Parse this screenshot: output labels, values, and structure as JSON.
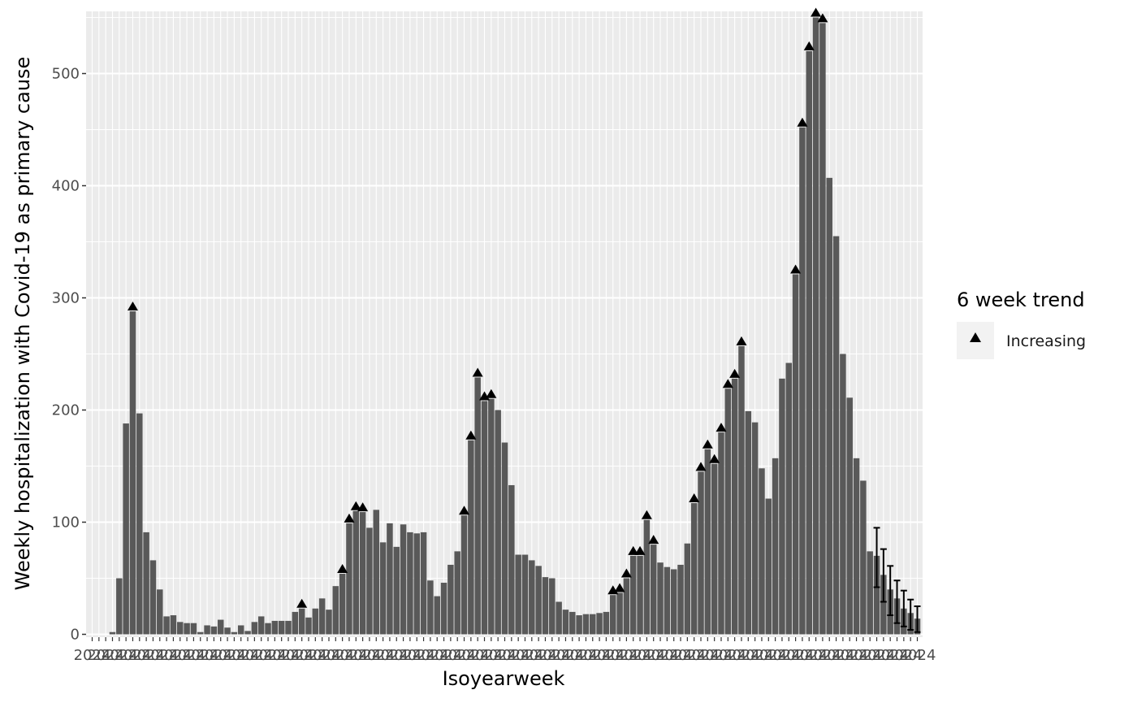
{
  "chart_data": {
    "type": "bar",
    "title": "",
    "xlabel": "Isoyearweek",
    "ylabel": "Weekly hospitalization with Covid-19 as primary cause",
    "ylim": [
      0,
      555
    ],
    "y_ticks": [
      0,
      100,
      200,
      300,
      400,
      500
    ],
    "x_tick_labels_legible": false,
    "x_tick_label_visible_fragment": "2024",
    "bar_color": "#595959",
    "panel_background": "#ebebeb",
    "grid": true,
    "values": [
      0,
      0,
      0,
      2,
      50,
      188,
      288,
      197,
      91,
      66,
      40,
      16,
      17,
      11,
      10,
      10,
      2,
      8,
      7,
      13,
      6,
      2,
      8,
      3,
      11,
      16,
      10,
      12,
      12,
      12,
      20,
      23,
      15,
      23,
      32,
      22,
      43,
      54,
      99,
      110,
      109,
      95,
      111,
      82,
      99,
      78,
      98,
      91,
      90,
      91,
      48,
      34,
      46,
      62,
      74,
      106,
      173,
      229,
      208,
      210,
      200,
      171,
      133,
      71,
      71,
      66,
      61,
      51,
      50,
      29,
      22,
      20,
      17,
      18,
      18,
      19,
      20,
      35,
      37,
      50,
      70,
      70,
      102,
      80,
      64,
      60,
      58,
      62,
      81,
      117,
      145,
      165,
      152,
      180,
      219,
      228,
      257,
      199,
      189,
      148,
      121,
      157,
      228,
      242,
      321,
      452,
      520,
      550,
      545,
      407,
      355,
      250,
      211,
      157,
      137,
      74,
      70,
      53,
      40,
      32,
      23,
      19,
      14
    ],
    "trend_marker_indices": [
      6,
      31,
      37,
      38,
      39,
      40,
      55,
      56,
      57,
      58,
      59,
      77,
      78,
      79,
      80,
      81,
      82,
      83,
      89,
      90,
      91,
      92,
      93,
      94,
      95,
      96,
      104,
      105,
      106,
      107,
      108
    ],
    "error_bars": [
      {
        "index": 116,
        "low": 42,
        "high": 95
      },
      {
        "index": 117,
        "low": 29,
        "high": 76
      },
      {
        "index": 118,
        "low": 17,
        "high": 61
      },
      {
        "index": 119,
        "low": 10,
        "high": 48
      },
      {
        "index": 120,
        "low": 7,
        "high": 39
      },
      {
        "index": 121,
        "low": 4,
        "high": 31
      },
      {
        "index": 122,
        "low": 2,
        "high": 25
      }
    ],
    "legend": {
      "title": "6 week trend",
      "items": [
        {
          "label": "Increasing",
          "marker": "triangle-up"
        }
      ]
    }
  }
}
